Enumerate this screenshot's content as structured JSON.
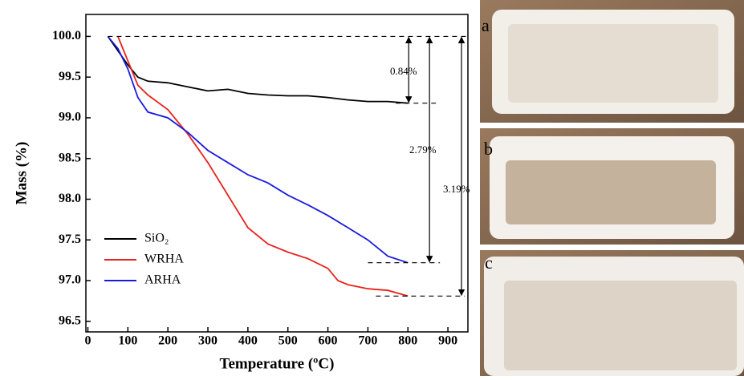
{
  "chart_data": {
    "type": "line",
    "xlabel": "Temperature (ºC)",
    "ylabel": "Mass (%)",
    "xlim": [
      -5,
      950
    ],
    "ylim": [
      96.37,
      100.27
    ],
    "xticks": [
      0,
      100,
      200,
      300,
      400,
      500,
      600,
      700,
      800,
      900
    ],
    "yticks": [
      {
        "value": 100,
        "label": "100.0"
      },
      99.5,
      {
        "value": 99,
        "label": "99.0"
      },
      98.5,
      {
        "value": 98,
        "label": "98.0"
      },
      97.5,
      {
        "value": 97,
        "label": "97.0"
      },
      96.5
    ],
    "legend": "lower left",
    "series": [
      {
        "name": "SiO₂",
        "color": "#000000",
        "x": [
          50,
          100,
          125,
          150,
          200,
          250,
          300,
          350,
          400,
          450,
          500,
          550,
          600,
          650,
          700,
          750,
          800
        ],
        "values": [
          100,
          99.65,
          99.5,
          99.45,
          99.43,
          99.38,
          99.33,
          99.35,
          99.3,
          99.28,
          99.27,
          99.27,
          99.25,
          99.22,
          99.2,
          99.2,
          99.18
        ]
      },
      {
        "name": "WRHA",
        "color": "#e8231c",
        "x": [
          75,
          100,
          125,
          150,
          200,
          250,
          300,
          350,
          400,
          450,
          500,
          550,
          600,
          625,
          650,
          700,
          750,
          800
        ],
        "values": [
          100,
          99.7,
          99.4,
          99.28,
          99.1,
          98.8,
          98.45,
          98.05,
          97.65,
          97.45,
          97.35,
          97.27,
          97.15,
          97.0,
          96.95,
          96.9,
          96.88,
          96.81
        ]
      },
      {
        "name": "ARHA",
        "color": "#1a1adf",
        "x": [
          50,
          75,
          100,
          125,
          150,
          200,
          250,
          300,
          350,
          400,
          450,
          500,
          550,
          600,
          650,
          700,
          750,
          800
        ],
        "values": [
          100,
          99.85,
          99.6,
          99.25,
          99.07,
          99.0,
          98.82,
          98.6,
          98.45,
          98.3,
          98.2,
          98.05,
          97.93,
          97.8,
          97.65,
          97.5,
          97.3,
          97.22
        ]
      }
    ],
    "annotations": [
      "0.84%",
      "2.79%",
      "3.19%"
    ]
  },
  "photos": {
    "labels": [
      "a",
      "b",
      "c"
    ]
  }
}
